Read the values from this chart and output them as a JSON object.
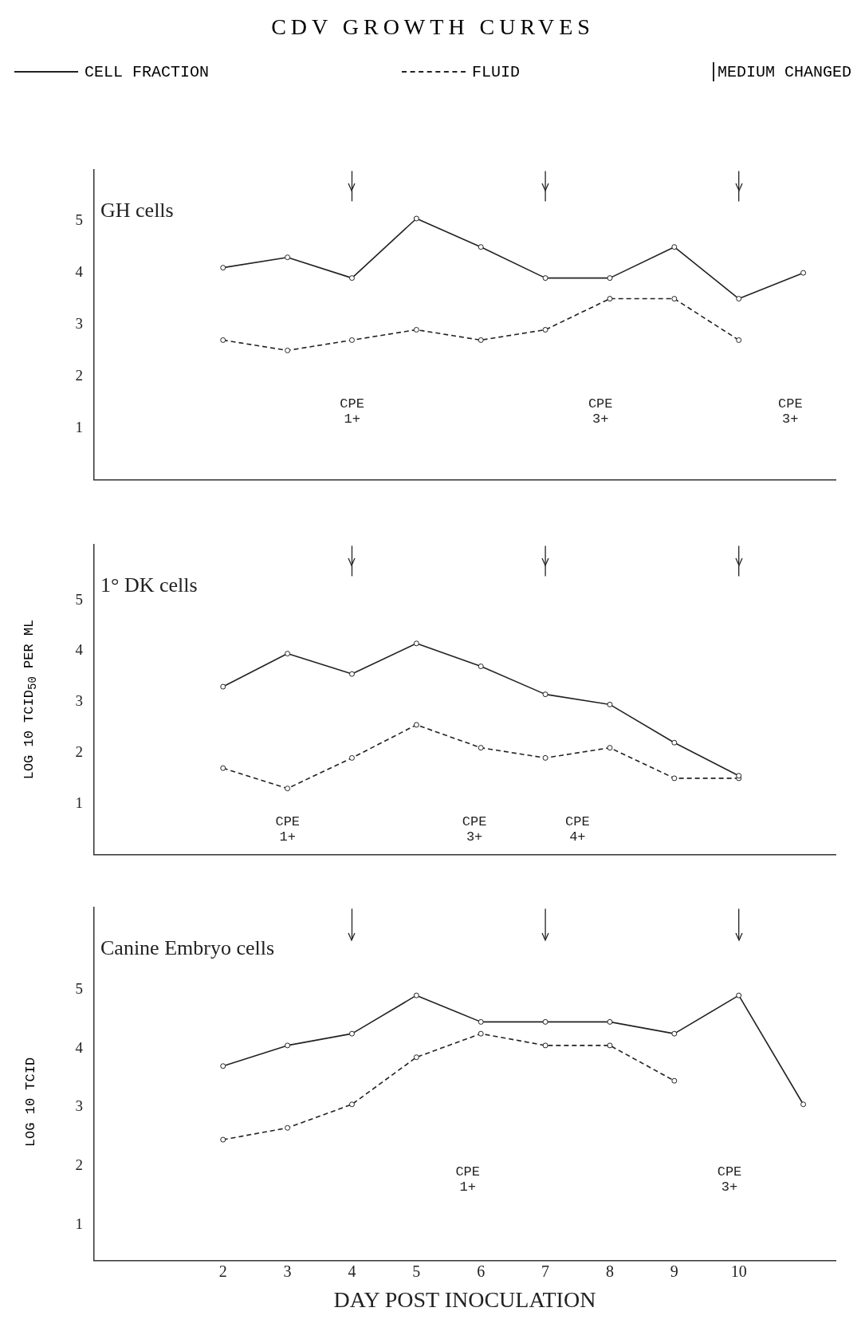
{
  "chart_data": [
    {
      "type": "line",
      "title": "CDV GROWTH CURVES",
      "subtitle": "GH cells",
      "x": [
        2,
        3,
        4,
        5,
        6,
        7,
        8,
        9,
        10,
        11
      ],
      "xlim": [
        0,
        11.5
      ],
      "xticks": [
        2,
        3,
        4,
        5,
        6,
        7,
        8,
        9,
        10
      ],
      "ylim": [
        0,
        6
      ],
      "yticks": [
        1,
        2,
        3,
        4,
        5
      ],
      "tick_labels": "y",
      "grid": false,
      "legend": "top",
      "marker": "circle",
      "series": [
        {
          "name": "CELL FRACTION",
          "color": "#222222",
          "line_style": "solid",
          "values": [
            4.1,
            4.3,
            3.9,
            5.05,
            4.5,
            3.9,
            3.9,
            4.5,
            3.5,
            4.0
          ]
        },
        {
          "name": "FLUID",
          "color": "#222222",
          "line_style": "dashed",
          "values": [
            2.7,
            2.5,
            2.7,
            2.9,
            2.7,
            2.9,
            3.5,
            3.5,
            2.7,
            null
          ]
        }
      ],
      "ref_lines": [
        {
          "axis": "x",
          "value": 4,
          "label": "MEDIUM CHANGED"
        },
        {
          "axis": "x",
          "value": 7
        },
        {
          "axis": "x",
          "value": 10
        }
      ],
      "annotations": [
        "CPE\n1+",
        "CPE\n3+",
        "CPE\n3+"
      ]
    },
    {
      "type": "line",
      "subtitle": "1° DK cells",
      "ylabel": "LOG 10 TCID$_{50}$ PER ML",
      "x": [
        2,
        3,
        4,
        5,
        6,
        7,
        8,
        9,
        10
      ],
      "xlim": [
        0,
        11.5
      ],
      "xticks": [
        2,
        3,
        4,
        5,
        6,
        7,
        8,
        9,
        10
      ],
      "ylim": [
        0,
        6.1
      ],
      "yticks": [
        1,
        2,
        3,
        4,
        5
      ],
      "tick_labels": "y",
      "grid": false,
      "marker": "circle",
      "series": [
        {
          "color": "#222222",
          "line_style": "solid",
          "values": [
            3.3,
            3.95,
            3.55,
            4.15,
            3.7,
            3.15,
            2.95,
            2.2,
            1.55
          ]
        },
        {
          "color": "#222222",
          "line_style": "dashed",
          "values": [
            1.7,
            1.3,
            1.9,
            2.55,
            2.1,
            1.9,
            2.1,
            1.5,
            1.5
          ]
        }
      ],
      "ref_lines": [
        {
          "axis": "x",
          "value": 4
        },
        {
          "axis": "x",
          "value": 7
        },
        {
          "axis": "x",
          "value": 10
        }
      ],
      "annotations": [
        "CPE\n1+",
        "CPE\n3+",
        "CPE\n4+"
      ]
    },
    {
      "type": "line",
      "subtitle": "Canine Embryo cells",
      "ylabel": "LOG 10 TCID",
      "xlabel": "DAY POST INOCULATION",
      "x": [
        2,
        3,
        4,
        5,
        6,
        7,
        8,
        9,
        10,
        11
      ],
      "xlim": [
        0,
        11.5
      ],
      "xticks": [
        2,
        3,
        4,
        5,
        6,
        7,
        8,
        9,
        10
      ],
      "ylim": [
        0.4,
        6.4
      ],
      "yticks": [
        1,
        2,
        3,
        4,
        5
      ],
      "grid": false,
      "marker": "circle",
      "series": [
        {
          "color": "#222222",
          "line_style": "solid",
          "values": [
            3.7,
            4.05,
            4.25,
            4.9,
            4.45,
            4.45,
            4.45,
            4.25,
            4.9,
            3.05
          ]
        },
        {
          "color": "#222222",
          "line_style": "dashed",
          "values": [
            2.45,
            2.65,
            3.05,
            3.85,
            4.25,
            4.05,
            4.05,
            3.45,
            null,
            null
          ]
        }
      ],
      "ref_lines": [
        {
          "axis": "x",
          "value": 4
        },
        {
          "axis": "x",
          "value": 7
        },
        {
          "axis": "x",
          "value": 10
        }
      ],
      "annotations": [
        "CPE\n1+",
        "CPE\n3+"
      ]
    }
  ]
}
